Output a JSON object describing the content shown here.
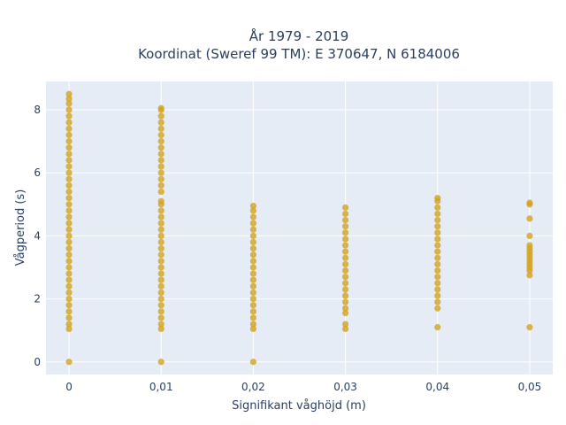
{
  "chart_data": {
    "type": "scatter",
    "title_line1": "År 1979 - 2019",
    "title_line2": "Koordinat (Sweref 99 TM): E 370647, N 6184006",
    "xlabel": "Signifikant våghöjd (m)",
    "ylabel": "Vågperiod (s)",
    "x_ticks": [
      {
        "value": 0,
        "label": "0"
      },
      {
        "value": 0.01,
        "label": "0,01"
      },
      {
        "value": 0.02,
        "label": "0,02"
      },
      {
        "value": 0.03,
        "label": "0,03"
      },
      {
        "value": 0.04,
        "label": "0,04"
      },
      {
        "value": 0.05,
        "label": "0,05"
      }
    ],
    "y_ticks": [
      {
        "value": 0,
        "label": "0"
      },
      {
        "value": 2,
        "label": "2"
      },
      {
        "value": 4,
        "label": "4"
      },
      {
        "value": 6,
        "label": "6"
      },
      {
        "value": 8,
        "label": "8"
      }
    ],
    "xlim": [
      -0.0025,
      0.0525
    ],
    "ylim": [
      -0.4,
      8.9
    ],
    "grid": true,
    "background_color": "#e5ecf6",
    "marker_color": "#d4a21a",
    "series": [
      {
        "x": 0,
        "points": [
          0.0,
          1.05,
          1.2,
          1.4,
          1.6,
          1.8,
          2.0,
          2.2,
          2.4,
          2.6,
          2.8,
          3.0,
          3.2,
          3.4,
          3.6,
          3.8,
          4.0,
          4.2,
          4.4,
          4.6,
          4.8,
          5.0,
          5.2,
          5.4,
          5.6,
          5.8,
          6.0,
          6.2,
          6.4,
          6.6,
          6.8,
          7.0,
          7.2,
          7.4,
          7.6,
          7.8,
          8.0,
          8.2,
          8.35,
          8.5
        ]
      },
      {
        "x": 0.01,
        "points": [
          0.0,
          1.05,
          1.2,
          1.4,
          1.6,
          1.8,
          2.0,
          2.2,
          2.4,
          2.6,
          2.8,
          3.0,
          3.2,
          3.4,
          3.6,
          3.8,
          4.0,
          4.2,
          4.4,
          4.6,
          4.8,
          5.0,
          5.1,
          5.4,
          5.6,
          5.8,
          6.0,
          6.2,
          6.4,
          6.6,
          6.8,
          7.0,
          7.2,
          7.4,
          7.6,
          7.8,
          8.0,
          8.05
        ]
      },
      {
        "x": 0.02,
        "points": [
          0.0,
          1.05,
          1.2,
          1.4,
          1.6,
          1.8,
          2.0,
          2.2,
          2.4,
          2.6,
          2.8,
          3.0,
          3.2,
          3.4,
          3.6,
          3.8,
          4.0,
          4.2,
          4.4,
          4.6,
          4.8,
          4.95
        ]
      },
      {
        "x": 0.03,
        "points": [
          1.05,
          1.2,
          1.55,
          1.7,
          1.9,
          2.1,
          2.3,
          2.5,
          2.7,
          2.9,
          3.1,
          3.3,
          3.5,
          3.7,
          3.9,
          4.1,
          4.3,
          4.5,
          4.7,
          4.9
        ]
      },
      {
        "x": 0.04,
        "points": [
          1.1,
          1.7,
          1.9,
          2.1,
          2.3,
          2.5,
          2.7,
          2.9,
          3.1,
          3.3,
          3.5,
          3.7,
          3.9,
          4.1,
          4.3,
          4.5,
          4.7,
          4.9,
          5.1,
          5.2
        ]
      },
      {
        "x": 0.05,
        "points": [
          1.1,
          2.75,
          2.9,
          3.0,
          3.1,
          3.2,
          3.3,
          3.4,
          3.5,
          3.6,
          3.7,
          4.0,
          4.55,
          5.0,
          5.05
        ]
      }
    ]
  }
}
